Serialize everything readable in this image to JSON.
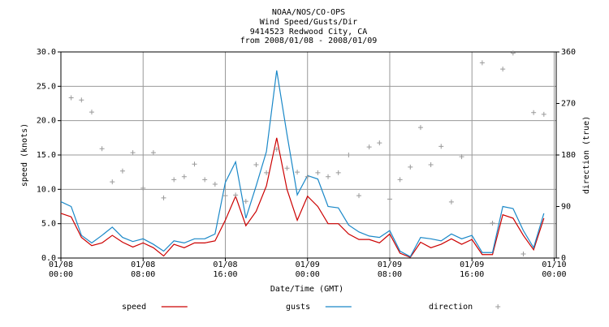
{
  "chart_data": {
    "type": "line",
    "title": [
      "NOAA/NOS/CO-OPS",
      "Wind Speed/Gusts/Dir",
      "9414523 Redwood City, CA",
      "from 2008/01/08 - 2008/01/09"
    ],
    "x_label": "Date/Time (GMT)",
    "y_label": "speed (knots)",
    "y2_label": "direction (true)",
    "x": [
      0,
      1,
      2,
      3,
      4,
      5,
      6,
      7,
      8,
      9,
      10,
      11,
      12,
      13,
      14,
      15,
      16,
      17,
      18,
      19,
      20,
      21,
      22,
      23,
      24,
      25,
      26,
      27,
      28,
      29,
      30,
      31,
      32,
      33,
      34,
      35,
      36,
      37,
      38,
      39,
      40,
      41,
      42,
      43,
      44,
      45,
      46,
      47
    ],
    "xlim": [
      0,
      48.2
    ],
    "xticks": [
      {
        "value": 0,
        "label": "01/08\n00:00"
      },
      {
        "value": 8,
        "label": "01/08\n08:00"
      },
      {
        "value": 16,
        "label": "01/08\n16:00"
      },
      {
        "value": 24,
        "label": "01/09\n00:00"
      },
      {
        "value": 32,
        "label": "01/09\n08:00"
      },
      {
        "value": 40,
        "label": "01/09\n16:00"
      },
      {
        "value": 48,
        "label": "01/10\n00:00"
      }
    ],
    "ylim": [
      0,
      30
    ],
    "yticks": [
      {
        "value": 0,
        "label": "0.0"
      },
      {
        "value": 5,
        "label": "5.0"
      },
      {
        "value": 10,
        "label": "10.0"
      },
      {
        "value": 15,
        "label": "15.0"
      },
      {
        "value": 20,
        "label": "20.0"
      },
      {
        "value": 25,
        "label": "25.0"
      },
      {
        "value": 30,
        "label": "30.0"
      }
    ],
    "y2lim": [
      0,
      360
    ],
    "y2ticks": [
      0,
      90,
      180,
      270,
      360
    ],
    "grid": true,
    "legend": "bottom",
    "series": [
      {
        "name": "speed",
        "color": "#cc0000",
        "mode": "lines",
        "values": [
          6.5,
          6.0,
          3.0,
          1.8,
          2.2,
          3.3,
          2.3,
          1.6,
          2.2,
          1.5,
          0.3,
          2.0,
          1.5,
          2.2,
          2.2,
          2.5,
          5.5,
          9.0,
          4.7,
          6.8,
          10.5,
          17.5,
          10.0,
          5.5,
          9.0,
          7.5,
          5.0,
          5.0,
          3.5,
          2.7,
          2.7,
          2.2,
          3.5,
          0.7,
          0.1,
          2.3,
          1.5,
          2.0,
          2.8,
          2.0,
          2.7,
          0.5,
          0.5,
          6.3,
          5.8,
          3.3,
          1.2,
          5.8
        ]
      },
      {
        "name": "gusts",
        "color": "#1a88c8",
        "mode": "lines",
        "values": [
          8.2,
          7.5,
          3.3,
          2.2,
          3.3,
          4.5,
          3.0,
          2.4,
          2.8,
          2.0,
          1.0,
          2.5,
          2.2,
          2.8,
          2.8,
          3.5,
          11.0,
          14.0,
          5.8,
          10.5,
          15.5,
          27.3,
          18.0,
          9.2,
          12.0,
          11.5,
          7.5,
          7.3,
          4.8,
          3.8,
          3.2,
          3.0,
          4.0,
          1.0,
          0.2,
          3.0,
          2.8,
          2.5,
          3.5,
          2.8,
          3.3,
          0.8,
          0.8,
          7.5,
          7.2,
          4.0,
          1.5,
          6.5
        ]
      },
      {
        "name": "direction",
        "color": "#999999",
        "mode": "markers",
        "axis": "y2",
        "values": [
          null,
          280,
          276,
          255,
          191,
          133,
          152,
          184,
          122,
          184,
          105,
          137,
          142,
          164,
          137,
          129,
          109,
          110,
          99,
          163,
          149,
          190,
          157,
          150,
          142,
          149,
          142,
          149,
          180,
          109,
          194,
          201,
          103,
          137,
          159,
          228,
          163,
          195,
          98,
          177,
          null,
          341,
          61,
          330,
          358,
          7,
          254,
          251
        ]
      }
    ]
  }
}
